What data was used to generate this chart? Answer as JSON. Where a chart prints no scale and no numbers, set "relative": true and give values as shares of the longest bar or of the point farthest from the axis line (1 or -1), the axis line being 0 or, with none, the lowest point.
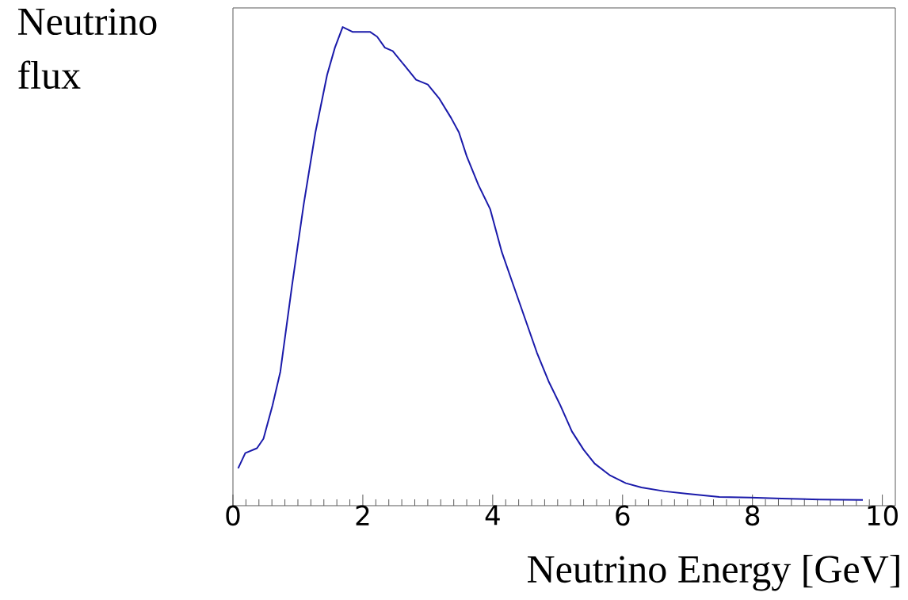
{
  "chart_data": {
    "type": "line",
    "relative": true,
    "xlabel": "Neutrino Energy [GeV]",
    "ylabel": "Neutrino flux",
    "xlim": [
      0,
      10.2
    ],
    "xticks": [
      0,
      2,
      4,
      6,
      8,
      10
    ],
    "color": "#1a1aaa",
    "x": [
      0.08,
      0.19,
      0.37,
      0.47,
      0.61,
      0.73,
      0.91,
      1.09,
      1.27,
      1.45,
      1.57,
      1.69,
      1.84,
      2.11,
      2.22,
      2.34,
      2.46,
      2.64,
      2.82,
      3.0,
      3.18,
      3.36,
      3.48,
      3.6,
      3.78,
      3.96,
      4.14,
      4.32,
      4.5,
      4.68,
      4.86,
      5.04,
      5.22,
      5.4,
      5.57,
      5.81,
      6.05,
      6.29,
      6.65,
      7.0,
      7.49,
      7.97,
      8.45,
      9.04,
      9.7
    ],
    "values": [
      0.078,
      0.11,
      0.12,
      0.14,
      0.21,
      0.28,
      0.46,
      0.63,
      0.78,
      0.9,
      0.957,
      1.0,
      0.99,
      0.99,
      0.98,
      0.957,
      0.95,
      0.92,
      0.89,
      0.88,
      0.85,
      0.81,
      0.78,
      0.73,
      0.67,
      0.62,
      0.53,
      0.46,
      0.39,
      0.32,
      0.26,
      0.21,
      0.155,
      0.117,
      0.088,
      0.063,
      0.047,
      0.038,
      0.03,
      0.025,
      0.018,
      0.017,
      0.015,
      0.013,
      0.012
    ]
  }
}
